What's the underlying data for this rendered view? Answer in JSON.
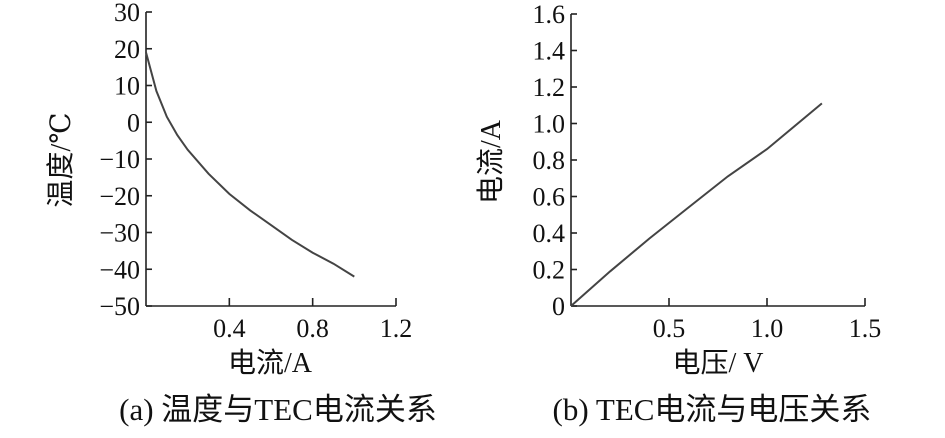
{
  "chart_data": [
    {
      "type": "line",
      "caption": "(a) 温度与TEC电流关系",
      "xlabel": "电流/A",
      "ylabel": "温度/℃",
      "xlim": [
        0,
        1.2
      ],
      "ylim": [
        -50,
        30
      ],
      "xticks": [
        0.4,
        0.8,
        1.2
      ],
      "xtick_labels": [
        "0.4",
        "0.8",
        "1.2"
      ],
      "yticks": [
        30,
        20,
        10,
        0,
        -10,
        -20,
        -30,
        -40,
        -50
      ],
      "ytick_labels": [
        "30",
        "20",
        "10",
        "0",
        "−10",
        "−20",
        "−30",
        "−40",
        "−50"
      ],
      "grid": false,
      "series": [
        {
          "x": [
            0.0,
            0.05,
            0.1,
            0.15,
            0.2,
            0.3,
            0.4,
            0.5,
            0.6,
            0.7,
            0.8,
            0.9,
            1.0
          ],
          "y": [
            19,
            8.5,
            1.5,
            -3.5,
            -7.5,
            -14,
            -19.5,
            -24,
            -28,
            -32,
            -35.5,
            -38.5,
            -42
          ]
        }
      ]
    },
    {
      "type": "line",
      "caption": "(b) TEC电流与电压关系",
      "xlabel": "电压/ V",
      "ylabel": "电流/A",
      "xlim": [
        0,
        1.5
      ],
      "ylim": [
        0,
        1.6
      ],
      "xticks": [
        0.5,
        1.0,
        1.5
      ],
      "xtick_labels": [
        "0.5",
        "1.0",
        "1.5"
      ],
      "yticks": [
        1.6,
        1.4,
        1.2,
        1.0,
        0.8,
        0.6,
        0.4,
        0.2,
        0
      ],
      "ytick_labels": [
        "1.6",
        "1.4",
        "1.2",
        "1.0",
        "0.8",
        "0.6",
        "0.4",
        "0.2",
        "0"
      ],
      "grid": false,
      "series": [
        {
          "x": [
            0.0,
            0.2,
            0.4,
            0.6,
            0.8,
            1.0,
            1.28
          ],
          "y": [
            0.0,
            0.19,
            0.37,
            0.54,
            0.71,
            0.86,
            1.11
          ]
        }
      ]
    }
  ]
}
